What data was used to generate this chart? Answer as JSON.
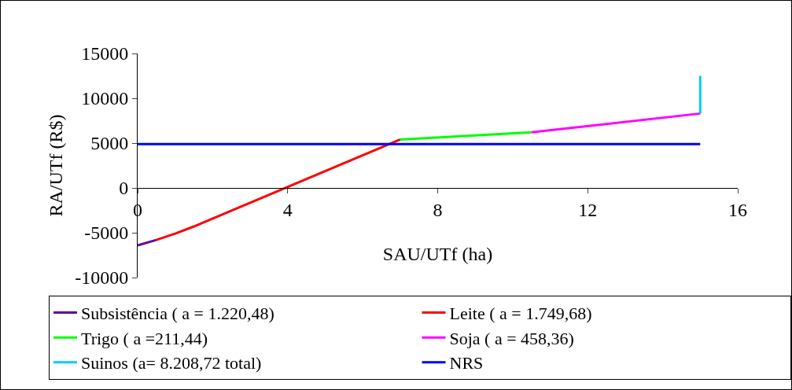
{
  "chart_data": {
    "type": "line",
    "xlabel": "SAU/UTf (ha)",
    "ylabel": "RA/UTf (R$)",
    "xlim": [
      0,
      16
    ],
    "xticks": [
      0,
      4,
      8,
      12,
      16
    ],
    "ylim": [
      -10000,
      15000
    ],
    "yticks": [
      -10000,
      -5000,
      0,
      5000,
      10000,
      15000
    ],
    "grid": false,
    "legend": "bottom",
    "marker": "none",
    "line_style": "solid",
    "series": [
      {
        "name": "Subsistência ( a = 1.220,48)",
        "color": "#660099",
        "x": [
          0,
          0.5
        ],
        "values": [
          -6400,
          -5800
        ]
      },
      {
        "name": "Leite ( a = 1.749,68)",
        "color": "#ff0000",
        "x": [
          0.5,
          1,
          1.5,
          7
        ],
        "values": [
          -5800,
          -5100,
          -4300,
          5400
        ]
      },
      {
        "name": "Trigo ( a =211,44)",
        "color": "#00ff00",
        "x": [
          7,
          10.5
        ],
        "values": [
          5400,
          6200
        ]
      },
      {
        "name": "Soja ( a = 458,36)",
        "color": "#ff00ff",
        "x": [
          10.5,
          15
        ],
        "values": [
          6200,
          8300
        ]
      },
      {
        "name": "Suinos (a= 8.208,72 total)",
        "color": "#00ccff",
        "x": [
          15,
          15
        ],
        "values": [
          8300,
          12500
        ]
      },
      {
        "name": "NRS",
        "color": "#0000ff",
        "x": [
          0,
          15
        ],
        "values": [
          4900,
          4900
        ]
      }
    ]
  }
}
